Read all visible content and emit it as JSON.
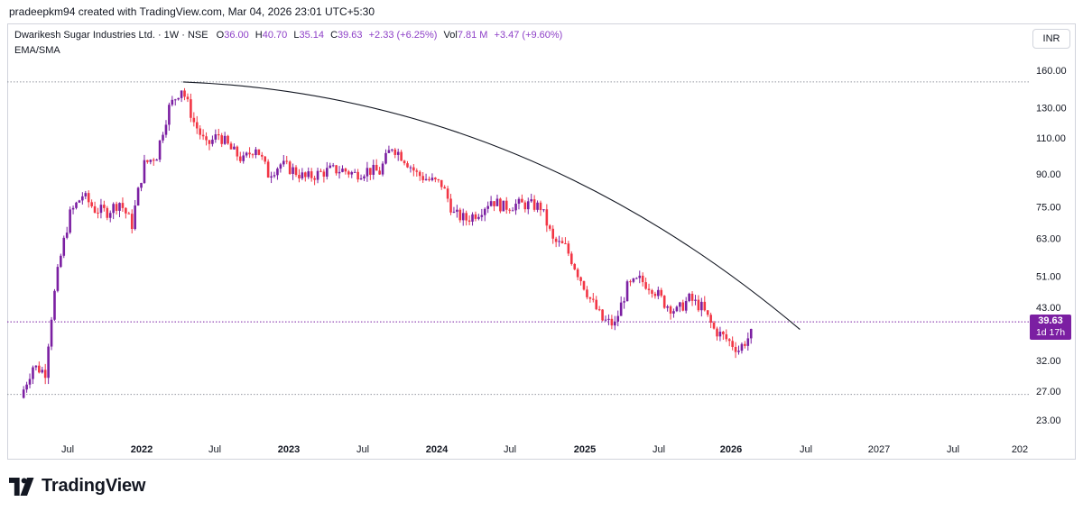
{
  "header": {
    "caption": "pradeepkm94 created with TradingView.com, Mar 04, 2026 23:01 UTC+5:30"
  },
  "legend": {
    "symbol": "Dwarikesh Sugar Industries Ltd. · 1W · NSE",
    "open_label": "O",
    "open": "36.00",
    "high_label": "H",
    "high": "40.70",
    "low_label": "L",
    "low": "35.14",
    "close_label": "C",
    "close": "39.63",
    "change": "+2.33 (+6.25%)",
    "vol_label": "Vol",
    "vol": "7.81 M",
    "vol_change": "+3.47 (+9.60%)",
    "indicator": "EMA/SMA"
  },
  "currency": "INR",
  "last_price_tag": {
    "price": "39.63",
    "countdown": "1d 17h"
  },
  "brand": {
    "name": "TradingView"
  },
  "colors": {
    "up": "#7b1fa2",
    "down": "#f23645",
    "trendline": "#131722",
    "hline": "#9598a1",
    "price_line": "#7b1fa2",
    "tag_bg": "#7b1fa2"
  },
  "chart_data": {
    "type": "candlestick",
    "title": "Dwarikesh Sugar Industries Ltd. · 1W · NSE",
    "scale": "log",
    "ylim": [
      23,
      160
    ],
    "y_ticks": [
      "160.00",
      "130.00",
      "110.00",
      "90.00",
      "75.00",
      "63.00",
      "51.00",
      "43.00",
      "32.00",
      "27.00",
      "23.00"
    ],
    "x_ticks": [
      "Jul",
      "2022",
      "Jul",
      "2023",
      "Jul",
      "2024",
      "Jul",
      "2025",
      "Jul",
      "2026",
      "Jul",
      "2027",
      "Jul",
      "202"
    ],
    "bold_x_ticks": [
      "2022",
      "2023",
      "2024",
      "2025",
      "2026"
    ],
    "horizontal_levels": [
      150,
      26.5
    ],
    "last_price": 39.63,
    "trendline": {
      "from": [
        "2022-04",
        150
      ],
      "to": [
        "2026-04",
        38
      ]
    },
    "price_path": [
      [
        "2021-03",
        26
      ],
      [
        "2021-04",
        31
      ],
      [
        "2021-05",
        30
      ],
      [
        "2021-06",
        52
      ],
      [
        "2021-07",
        72
      ],
      [
        "2021-08",
        80
      ],
      [
        "2021-09",
        74
      ],
      [
        "2021-10",
        73
      ],
      [
        "2021-11",
        77
      ],
      [
        "2021-12",
        68
      ],
      [
        "2022-01",
        95
      ],
      [
        "2022-02",
        100
      ],
      [
        "2022-03",
        130
      ],
      [
        "2022-04",
        145
      ],
      [
        "2022-05",
        120
      ],
      [
        "2022-06",
        105
      ],
      [
        "2022-07",
        112
      ],
      [
        "2022-08",
        103
      ],
      [
        "2022-09",
        97
      ],
      [
        "2022-10",
        105
      ],
      [
        "2022-11",
        90
      ],
      [
        "2022-12",
        95
      ],
      [
        "2023-01",
        92
      ],
      [
        "2023-02",
        88
      ],
      [
        "2023-03",
        90
      ],
      [
        "2023-04",
        92
      ],
      [
        "2023-05",
        92
      ],
      [
        "2023-06",
        90
      ],
      [
        "2023-07",
        92
      ],
      [
        "2023-08",
        91
      ],
      [
        "2023-09",
        105
      ],
      [
        "2023-10",
        98
      ],
      [
        "2023-11",
        90
      ],
      [
        "2023-12",
        87
      ],
      [
        "2024-01",
        85
      ],
      [
        "2024-02",
        72
      ],
      [
        "2024-03",
        70
      ],
      [
        "2024-04",
        73
      ],
      [
        "2024-05",
        78
      ],
      [
        "2024-06",
        75
      ],
      [
        "2024-07",
        76
      ],
      [
        "2024-08",
        76
      ],
      [
        "2024-09",
        75
      ],
      [
        "2024-10",
        62
      ],
      [
        "2024-11",
        60
      ],
      [
        "2024-12",
        52
      ],
      [
        "2025-01",
        45
      ],
      [
        "2025-02",
        40
      ],
      [
        "2025-03",
        39
      ],
      [
        "2025-04",
        48
      ],
      [
        "2025-05",
        50
      ],
      [
        "2025-06",
        48
      ],
      [
        "2025-07",
        44
      ],
      [
        "2025-08",
        42
      ],
      [
        "2025-09",
        45
      ],
      [
        "2025-10",
        43
      ],
      [
        "2025-11",
        38
      ],
      [
        "2025-12",
        36
      ],
      [
        "2026-01",
        34
      ],
      [
        "2026-02",
        37
      ],
      [
        "2026-03",
        39.63
      ]
    ]
  }
}
